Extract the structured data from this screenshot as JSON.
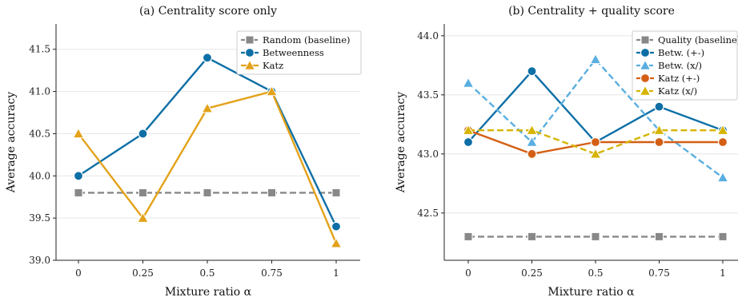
{
  "chart_data": [
    {
      "type": "line",
      "title": "(a) Centrality score only",
      "xlabel": "Mixture ratio α",
      "ylabel": "Average accuracy",
      "x": [
        "0",
        "0.25",
        "0.5",
        "0.75",
        "1"
      ],
      "ylim": [
        39.0,
        41.8
      ],
      "yticks": [
        "39.0",
        "39.5",
        "40.0",
        "40.5",
        "41.0",
        "41.5"
      ],
      "grid": "horizontal",
      "legend": "top-right",
      "series": [
        {
          "name": "Random (baseline)",
          "values": [
            39.8,
            39.8,
            39.8,
            39.8,
            39.8
          ],
          "color": "#888888",
          "dash": "dashed",
          "marker": "square"
        },
        {
          "name": "Betweenness",
          "values": [
            40.0,
            40.5,
            41.4,
            41.0,
            39.4
          ],
          "color": "#0d6fa6",
          "dash": "solid",
          "marker": "circle"
        },
        {
          "name": "Katz",
          "values": [
            40.5,
            39.5,
            40.8,
            41.0,
            39.2
          ],
          "color": "#e3a21a",
          "dash": "solid",
          "marker": "triangle"
        }
      ]
    },
    {
      "type": "line",
      "title": "(b) Centrality + quality score",
      "xlabel": "Mixture ratio α",
      "ylabel": "Average accuracy",
      "x": [
        "0",
        "0.25",
        "0.5",
        "0.75",
        "1"
      ],
      "ylim": [
        42.1,
        44.1
      ],
      "yticks": [
        "42.5",
        "43.0",
        "43.5",
        "44.0"
      ],
      "grid": "horizontal",
      "legend": "top-right",
      "series": [
        {
          "name": "Quality (baseline)",
          "values": [
            42.3,
            42.3,
            42.3,
            42.3,
            42.3
          ],
          "color": "#888888",
          "dash": "dashed",
          "marker": "square"
        },
        {
          "name": "Betw. (+-)",
          "values": [
            43.1,
            43.7,
            43.1,
            43.4,
            43.2
          ],
          "color": "#0d6fa6",
          "dash": "solid",
          "marker": "circle"
        },
        {
          "name": "Betw. (x/)",
          "values": [
            43.6,
            43.1,
            43.8,
            43.2,
            42.8
          ],
          "color": "#5aaee0",
          "dash": "dashed",
          "marker": "triangle"
        },
        {
          "name": "Katz (+-)",
          "values": [
            43.2,
            43.0,
            43.1,
            43.1,
            43.1
          ],
          "color": "#d45f14",
          "dash": "solid",
          "marker": "circle"
        },
        {
          "name": "Katz (x/)",
          "values": [
            43.2,
            43.2,
            43.0,
            43.2,
            43.2
          ],
          "color": "#d6b400",
          "dash": "dashed",
          "marker": "triangle"
        }
      ]
    }
  ]
}
